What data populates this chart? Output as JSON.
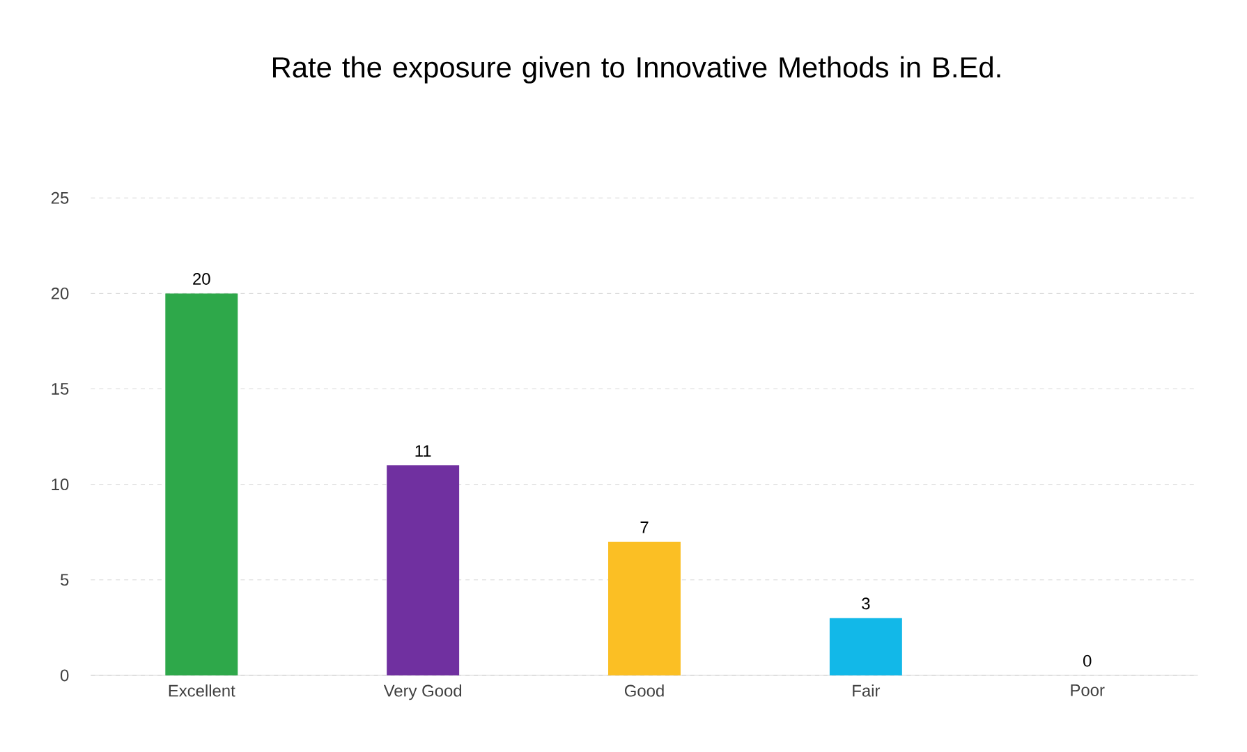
{
  "chart_data": {
    "type": "bar",
    "title": "Rate the exposure given to Innovative Methods in B.Ed.",
    "categories": [
      "Excellent",
      "Very Good",
      "Good",
      "Fair",
      "Poor"
    ],
    "values": [
      20,
      11,
      7,
      3,
      0
    ],
    "colors": [
      "#2ea84a",
      "#7030a0",
      "#fbbf24",
      "#12b8e8",
      "#a5a5a5"
    ],
    "ylim": [
      0,
      25
    ],
    "yticks": [
      0,
      5,
      10,
      15,
      20,
      25
    ],
    "grid": "y",
    "data_labels": true
  }
}
